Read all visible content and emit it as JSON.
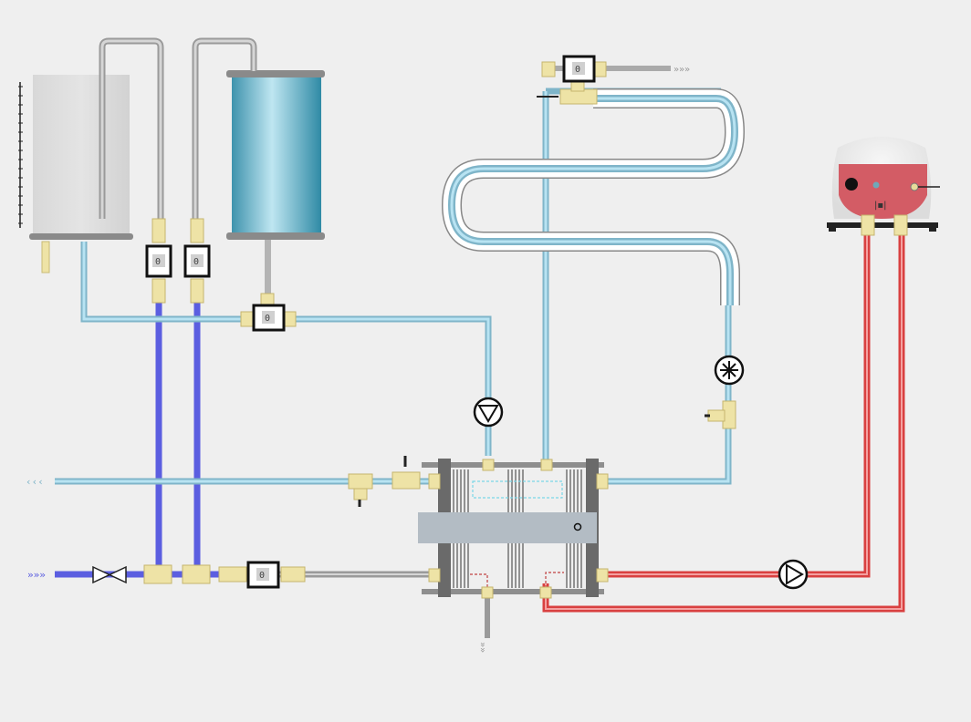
{
  "meters": {
    "heating_supply": "0",
    "solar_return": "0",
    "tap_cold": "0",
    "tap_hot": "0",
    "cold_inlet": "0"
  },
  "colors": {
    "light_blue": "#9ad3e8",
    "dark_blue": "#5b5ee0",
    "red": "#e04a4a",
    "gray": "#b4b4b4",
    "fitting": "#eee3a6"
  },
  "icons": {
    "circulation_pump": "pump-icon",
    "fan": "fan-icon",
    "ball_valve": "valve-icon"
  }
}
